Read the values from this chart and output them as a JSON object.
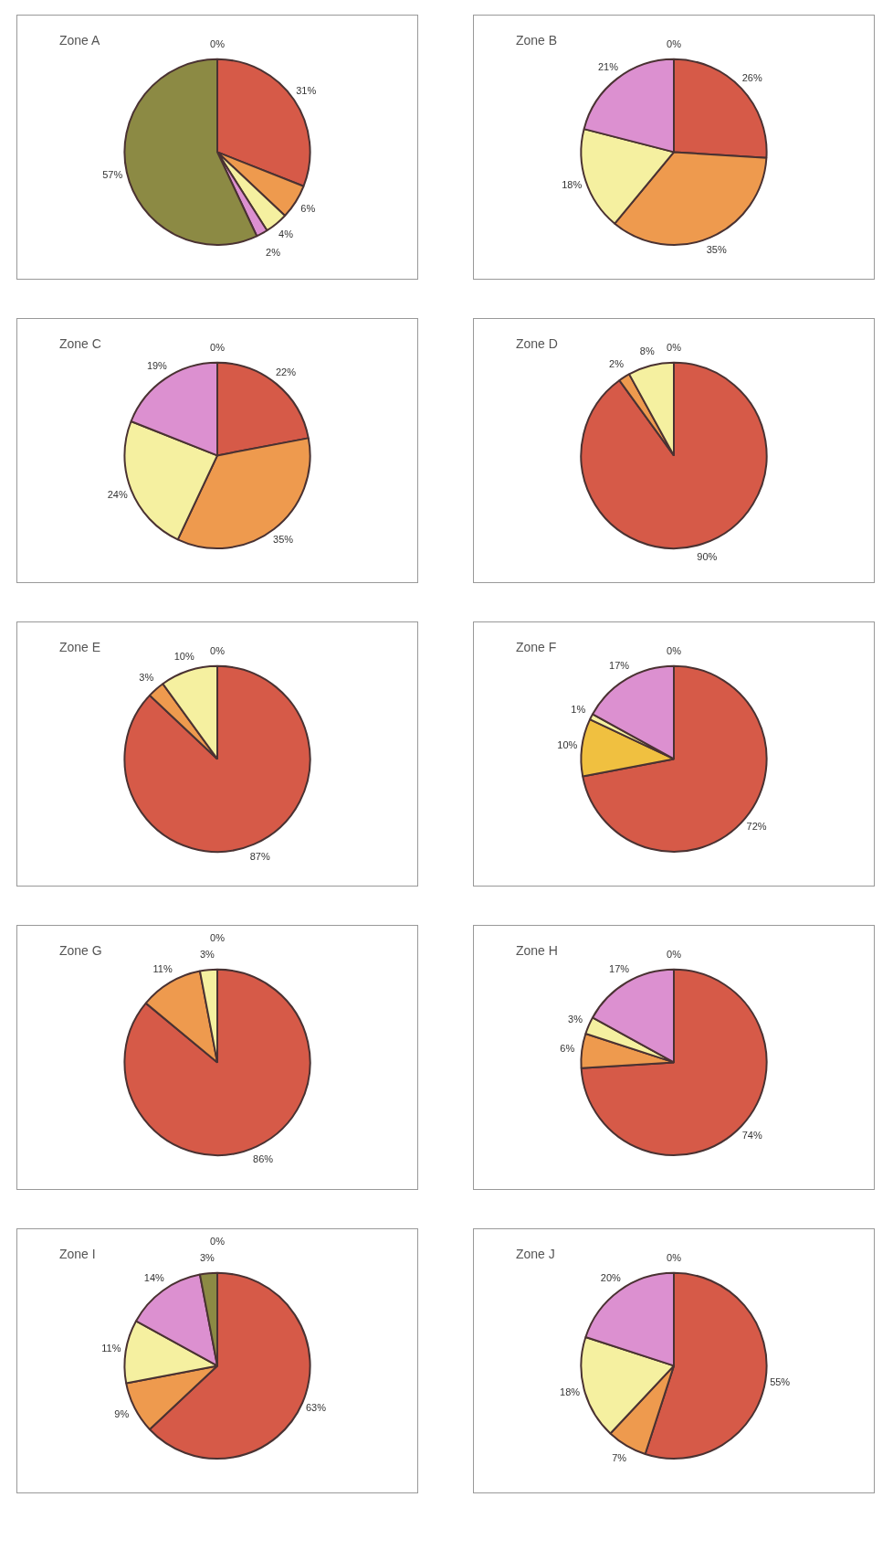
{
  "chart_data": [
    {
      "type": "pie",
      "title": "Zone A",
      "categories": [
        null,
        null,
        null,
        null,
        null,
        null
      ],
      "values": [
        31,
        6,
        4,
        2,
        57,
        0
      ],
      "value_labels": [
        "31%",
        "6%",
        "4%",
        "2%",
        "57%",
        "0%"
      ],
      "colors": [
        "#d65a48",
        "#ee9a4e",
        "#f5f0a0",
        "#dc90d0",
        "#8c8a44",
        "#808080"
      ]
    },
    {
      "type": "pie",
      "title": "Zone B",
      "categories": [
        null,
        null,
        null,
        null,
        null
      ],
      "values": [
        26,
        35,
        18,
        21,
        0
      ],
      "value_labels": [
        "26%",
        "35%",
        "18%",
        "21%",
        "0%"
      ],
      "colors": [
        "#d65a48",
        "#ee9a4e",
        "#f5f0a0",
        "#dc90d0",
        "#8c8a44"
      ]
    },
    {
      "type": "pie",
      "title": "Zone C",
      "categories": [
        null,
        null,
        null,
        null,
        null
      ],
      "values": [
        22,
        35,
        24,
        19,
        0
      ],
      "value_labels": [
        "22%",
        "35%",
        "24%",
        "19%",
        "0%"
      ],
      "colors": [
        "#d65a48",
        "#ee9a4e",
        "#f5f0a0",
        "#dc90d0",
        "#8c8a44"
      ]
    },
    {
      "type": "pie",
      "title": "Zone D",
      "categories": [
        null,
        null,
        null,
        null
      ],
      "values": [
        90,
        2,
        8,
        0
      ],
      "value_labels": [
        "90%",
        "2%",
        "8%",
        "0%"
      ],
      "colors": [
        "#d65a48",
        "#ee9a4e",
        "#f5f0a0",
        "#dc90d0"
      ]
    },
    {
      "type": "pie",
      "title": "Zone E",
      "categories": [
        null,
        null,
        null,
        null
      ],
      "values": [
        87,
        3,
        10,
        0
      ],
      "value_labels": [
        "87%",
        "3%",
        "10%",
        "0%"
      ],
      "colors": [
        "#d65a48",
        "#ee9a4e",
        "#f5f0a0",
        "#dc90d0"
      ]
    },
    {
      "type": "pie",
      "title": "Zone F",
      "categories": [
        null,
        null,
        null,
        null,
        null
      ],
      "values": [
        72,
        10,
        1,
        17,
        0
      ],
      "value_labels": [
        "72%",
        "10%",
        "1%",
        "17%",
        "0%"
      ],
      "colors": [
        "#d65a48",
        "#f0c040",
        "#f5f0a0",
        "#dc90d0",
        "#8c8a44"
      ]
    },
    {
      "type": "pie",
      "title": "Zone G",
      "categories": [
        null,
        null,
        null,
        null
      ],
      "values": [
        86,
        11,
        3,
        0
      ],
      "value_labels": [
        "86%",
        "11%",
        "3%",
        "0%"
      ],
      "colors": [
        "#d65a48",
        "#ee9a4e",
        "#f5f0a0",
        "#dc90d0"
      ]
    },
    {
      "type": "pie",
      "title": "Zone H",
      "categories": [
        null,
        null,
        null,
        null,
        null
      ],
      "values": [
        74,
        6,
        3,
        17,
        0
      ],
      "value_labels": [
        "74%",
        "6%",
        "3%",
        "17%",
        "0%"
      ],
      "colors": [
        "#d65a48",
        "#ee9a4e",
        "#f5f0a0",
        "#dc90d0",
        "#8c8a44"
      ]
    },
    {
      "type": "pie",
      "title": "Zone I",
      "categories": [
        null,
        null,
        null,
        null,
        null,
        null
      ],
      "values": [
        63,
        9,
        11,
        14,
        3,
        0
      ],
      "value_labels": [
        "63%",
        "9%",
        "11%",
        "14%",
        "3%",
        "0%"
      ],
      "colors": [
        "#d65a48",
        "#ee9a4e",
        "#f5f0a0",
        "#dc90d0",
        "#8c8a44",
        "#808080"
      ]
    },
    {
      "type": "pie",
      "title": "Zone J",
      "categories": [
        null,
        null,
        null,
        null,
        null
      ],
      "values": [
        55,
        7,
        18,
        20,
        0
      ],
      "value_labels": [
        "55%",
        "7%",
        "18%",
        "20%",
        "0%"
      ],
      "colors": [
        "#d65a48",
        "#ee9a4e",
        "#f5f0a0",
        "#dc90d0",
        "#8c8a44"
      ]
    }
  ]
}
